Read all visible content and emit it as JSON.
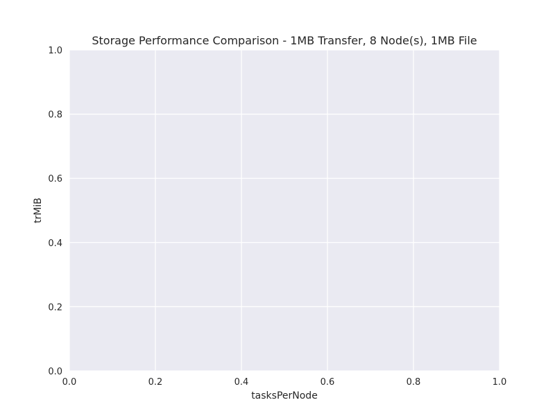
{
  "chart_data": {
    "type": "line",
    "title": "Storage Performance Comparison - 1MB Transfer, 8 Node(s), 1MB File",
    "xlabel": "tasksPerNode",
    "ylabel": "trMiB",
    "xlim": [
      0.0,
      1.0
    ],
    "ylim": [
      0.0,
      1.0
    ],
    "xticks": [
      "0.0",
      "0.2",
      "0.4",
      "0.6",
      "0.8",
      "1.0"
    ],
    "yticks": [
      "0.0",
      "0.2",
      "0.4",
      "0.6",
      "0.8",
      "1.0"
    ],
    "series": [],
    "grid": true,
    "style": {
      "background": "#ffffff",
      "plot_background": "#eaeaf2",
      "grid_color": "#ffffff",
      "text_color": "#262626"
    }
  }
}
